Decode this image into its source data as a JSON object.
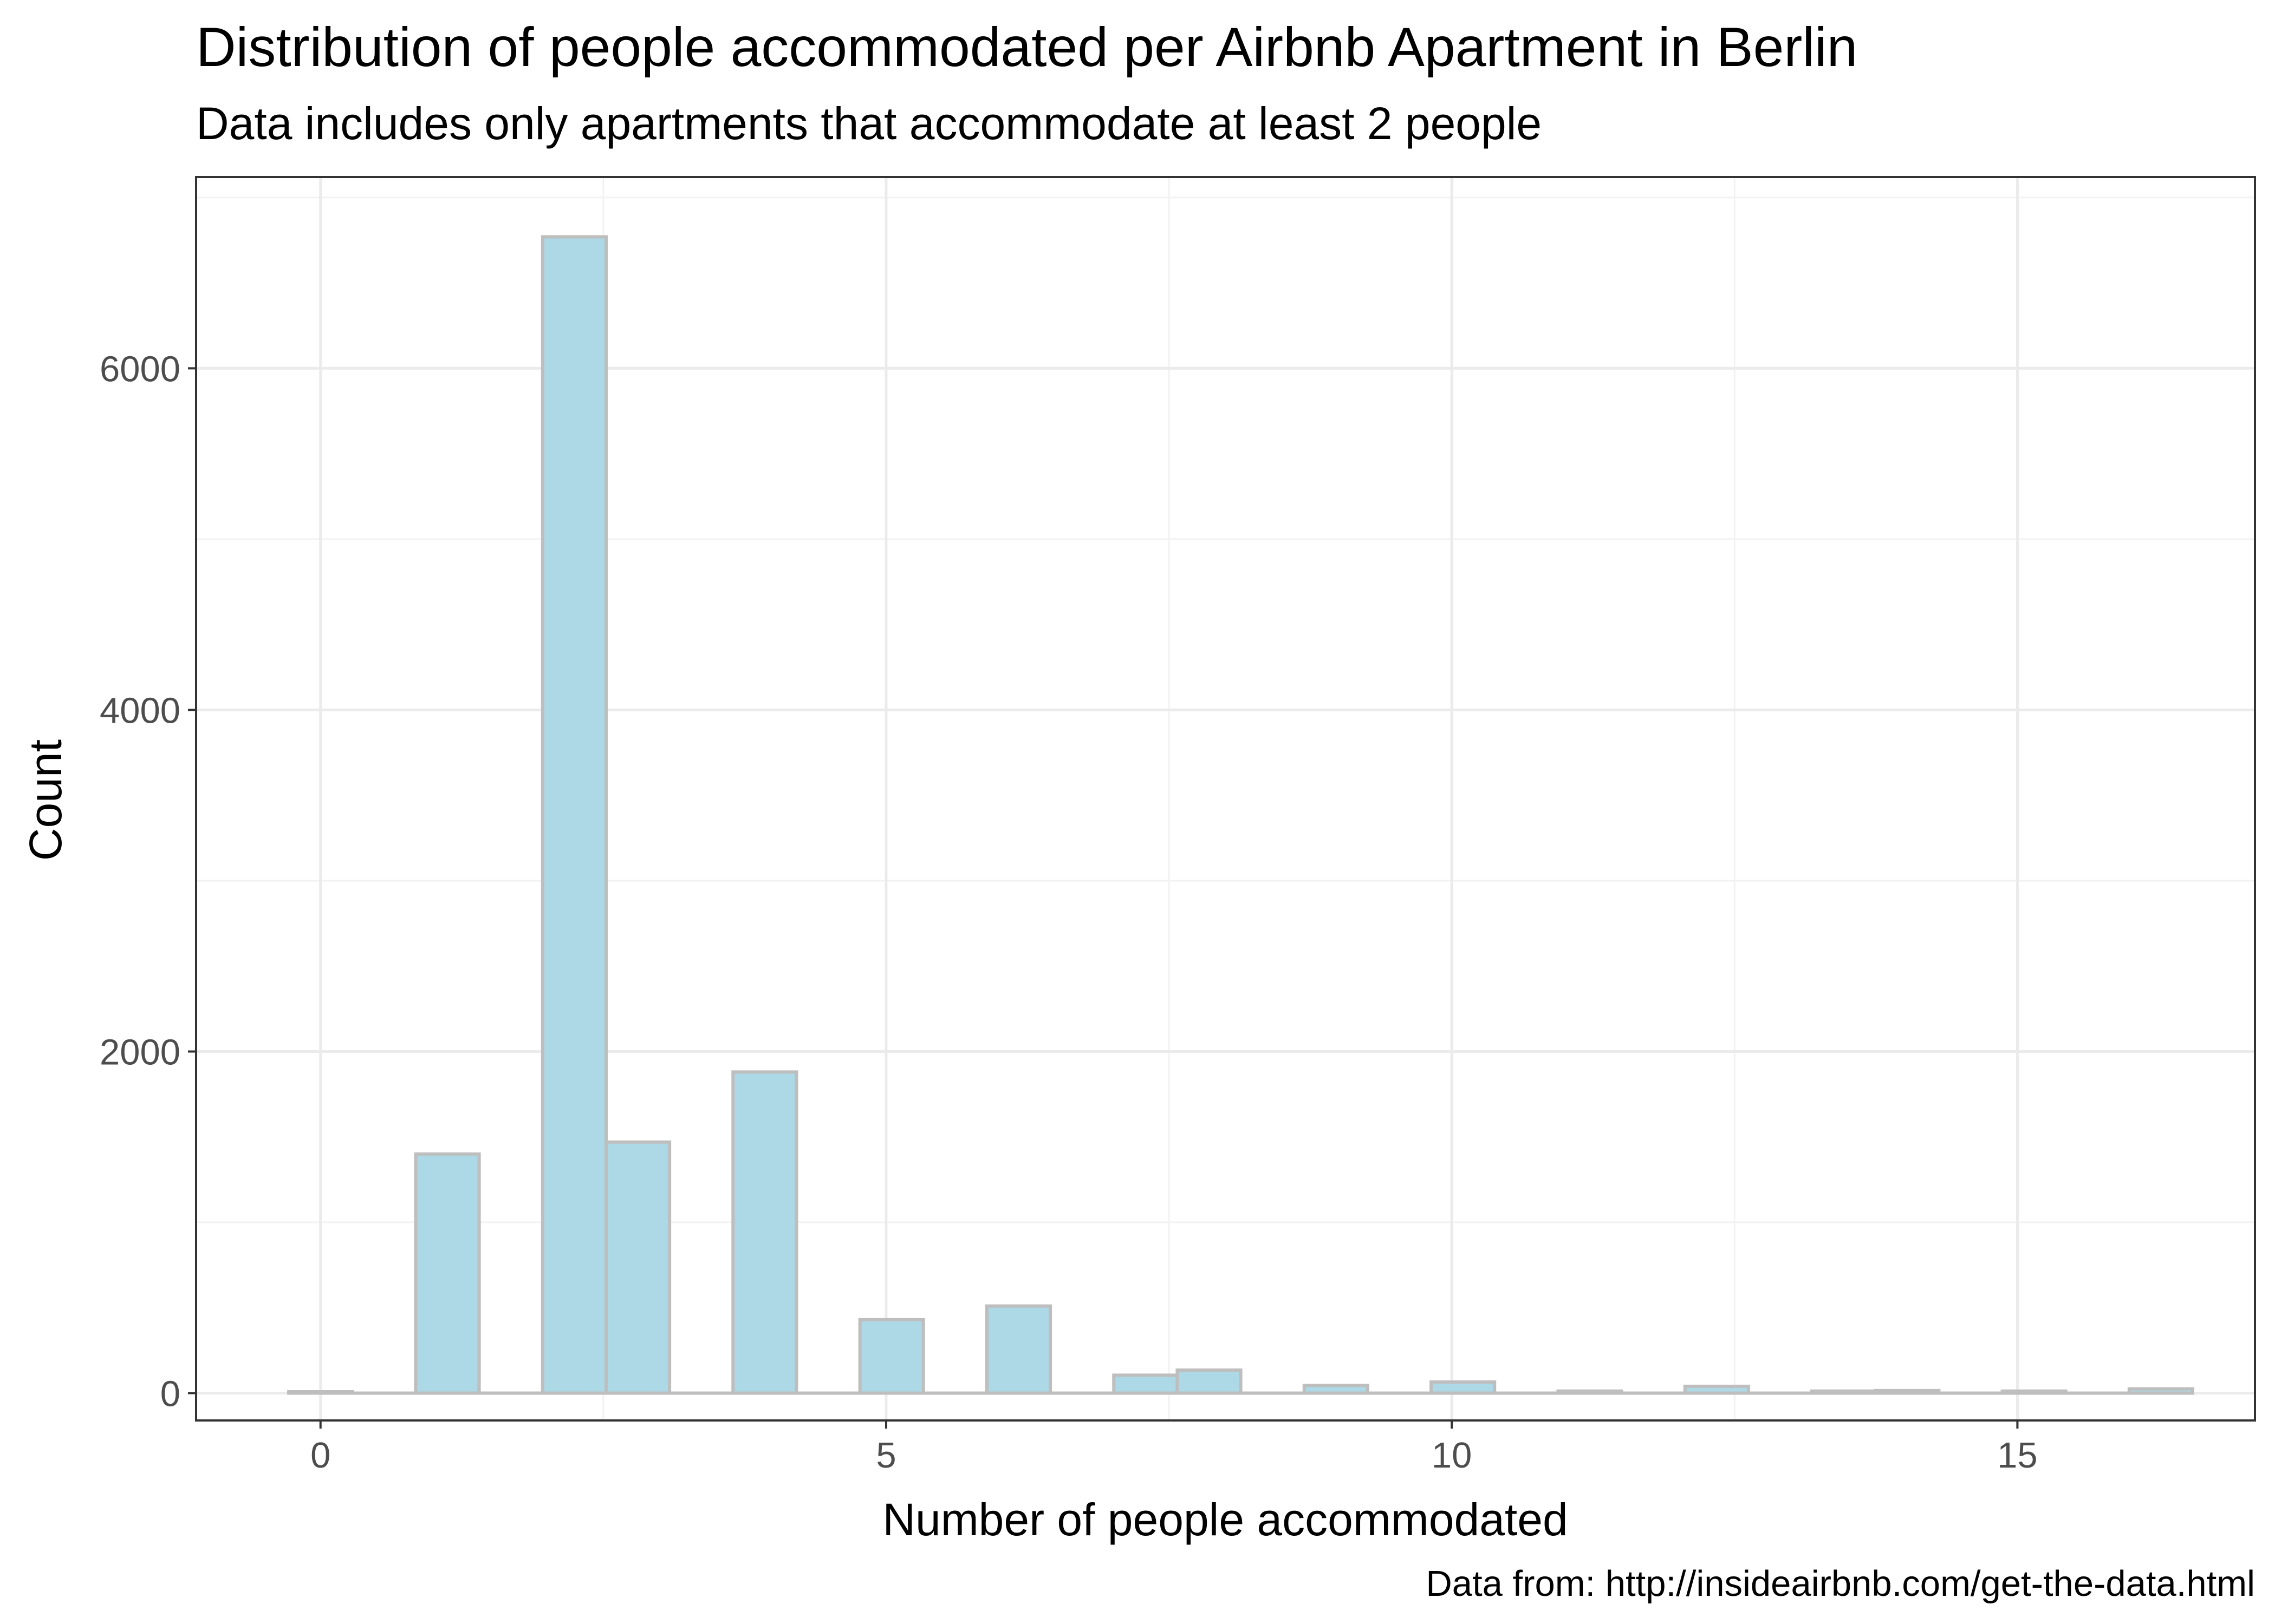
{
  "chart_data": {
    "type": "bar",
    "title": "Distribution of people accommodated per Airbnb Apartment in Berlin",
    "subtitle": "Data includes only apartments that accommodate at least 2 people",
    "xlabel": "Number of people accommodated",
    "ylabel": "Count",
    "caption": "Data from: http://insideairbnb.com/get-the-data.html",
    "xlim": [
      -1.1,
      17.1
    ],
    "ylim": [
      -160,
      7120
    ],
    "x_ticks": [
      0,
      5,
      10,
      15
    ],
    "x_tick_labels": [
      "0",
      "5",
      "10",
      "15"
    ],
    "y_ticks": [
      0,
      2000,
      4000,
      6000
    ],
    "y_tick_labels": [
      "0",
      "2000",
      "4000",
      "6000"
    ],
    "grid": true,
    "bin_width": 0.561,
    "bins_start": -0.2805,
    "values": [
      8,
      0,
      1400,
      0,
      6770,
      1470,
      0,
      1880,
      0,
      430,
      0,
      510,
      0,
      105,
      135,
      0,
      45,
      0,
      65,
      0,
      12,
      0,
      40,
      0,
      12,
      15,
      0,
      12,
      0,
      25
    ],
    "colors": {
      "bar_fill": "#add8e6",
      "bar_outline": "#bebebe"
    }
  }
}
